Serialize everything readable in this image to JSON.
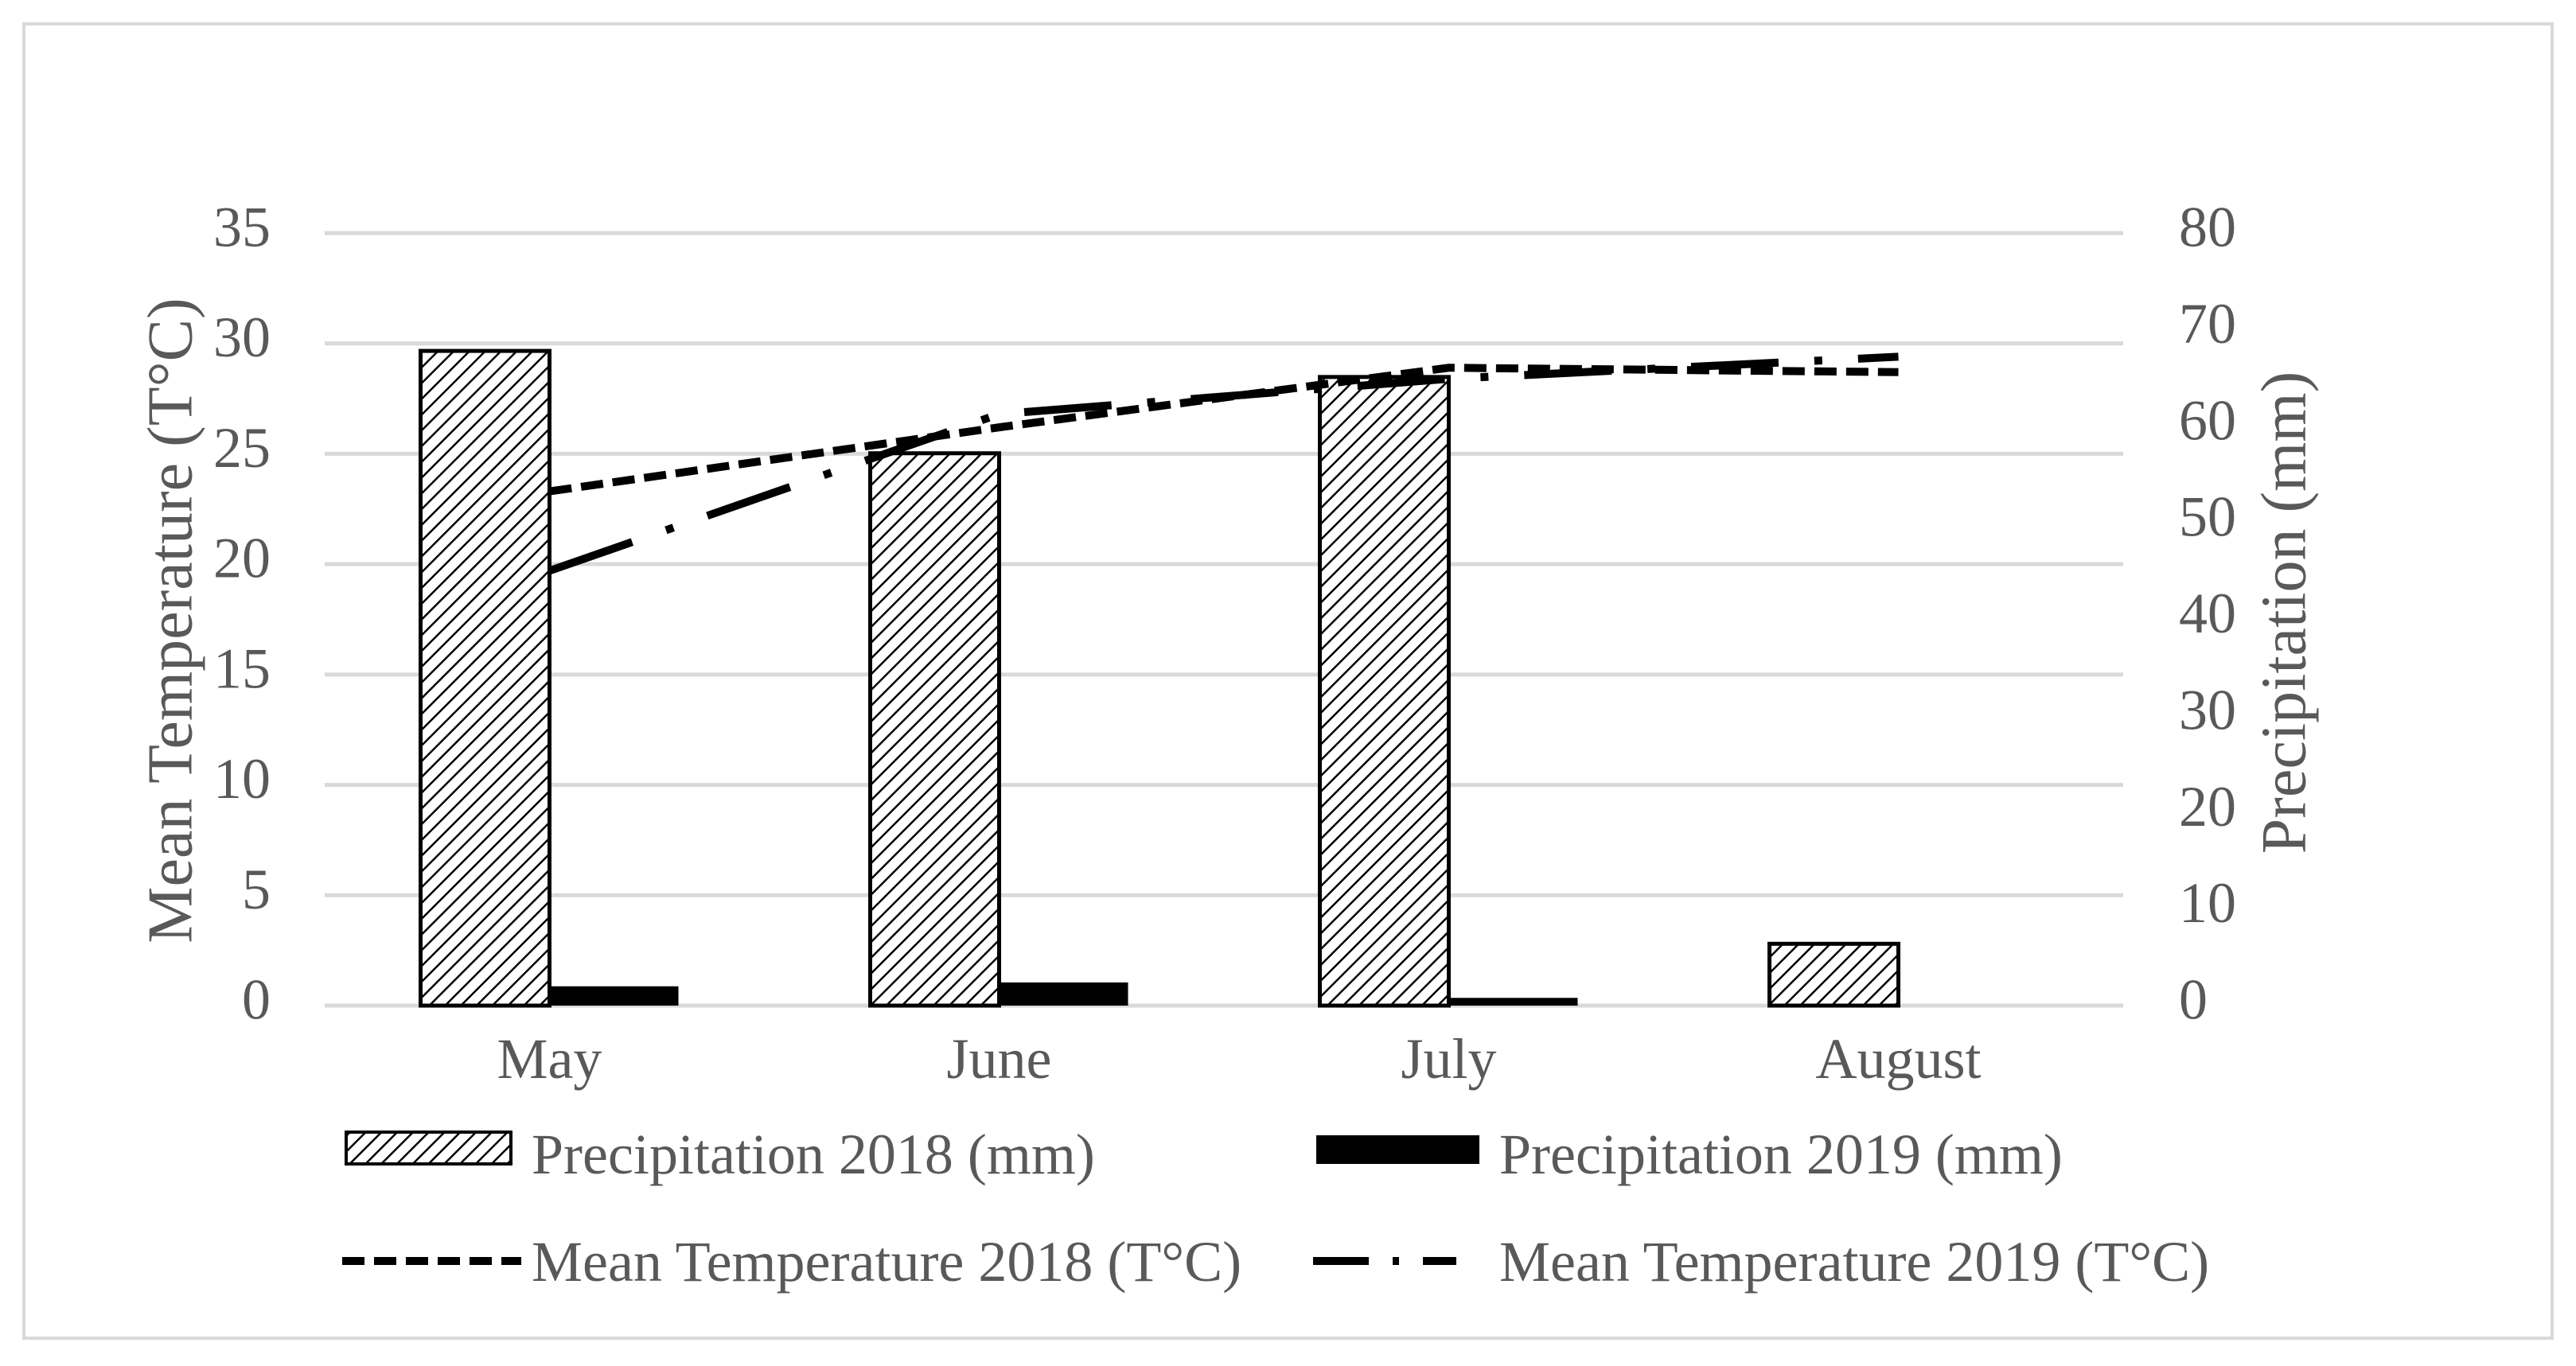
{
  "chart_data": {
    "type": "bar+line",
    "categories": [
      "May",
      "June",
      "July",
      "August"
    ],
    "left_axis": {
      "label": "Mean Temperature  (T°C)",
      "min": 0,
      "max": 35,
      "step": 5,
      "ticks": [
        "0",
        "5",
        "10",
        "15",
        "20",
        "25",
        "30",
        "35"
      ]
    },
    "right_axis": {
      "label": "Precipitation  (mm)",
      "min": 0,
      "max": 80,
      "step": 10,
      "ticks": [
        "0",
        "10",
        "20",
        "30",
        "40",
        "50",
        "60",
        "70",
        "80"
      ]
    },
    "bar_series": [
      {
        "name": "Precipitation 2018  (mm)",
        "axis": "right",
        "pattern": "hatch",
        "values": [
          67.8,
          57.2,
          65.1,
          6.4
        ]
      },
      {
        "name": "Precipitation 2019  (mm)",
        "axis": "right",
        "pattern": "solid",
        "values": [
          2.0,
          2.4,
          0.8,
          0
        ]
      }
    ],
    "line_series": [
      {
        "name": "Mean Temperature 2018  (T°C)",
        "axis": "left",
        "style": "dash",
        "values": [
          23.3,
          26.2,
          28.9,
          28.7
        ]
      },
      {
        "name": "Mean Temperature 2019  (T°C)",
        "axis": "left",
        "style": "dash-dot",
        "values": [
          19.7,
          26.8,
          28.4,
          29.4
        ]
      }
    ],
    "legend_position": "bottom",
    "grid": true,
    "colors": {
      "bar_outline": "#000000",
      "solid_fill": "#000000",
      "line": "#000000",
      "grid": "#d9d9d9",
      "text": "#595959",
      "frame": "#d9d9d9"
    }
  }
}
